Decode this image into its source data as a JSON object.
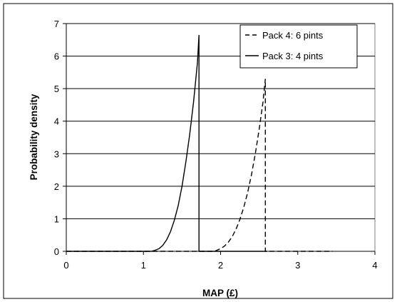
{
  "chart_data": {
    "type": "line",
    "title": "",
    "xlabel": "MAP (£)",
    "ylabel": "Probability density",
    "xlim": [
      0,
      4
    ],
    "ylim": [
      0,
      7
    ],
    "x_ticks": [
      "0",
      "1",
      "2",
      "3",
      "4"
    ],
    "y_ticks": [
      "0",
      "1",
      "2",
      "3",
      "4",
      "5",
      "6",
      "7"
    ],
    "grid": {
      "horizontal": true,
      "vertical": false
    },
    "legend_position": "top-right",
    "series": [
      {
        "name": "Pack 4: 6 pints",
        "dash": "dashed",
        "color": "#000000",
        "points": [
          [
            0.0,
            0.0
          ],
          [
            1.92,
            0.0
          ],
          [
            1.95,
            0.03
          ],
          [
            2.0,
            0.08
          ],
          [
            2.05,
            0.16
          ],
          [
            2.1,
            0.28
          ],
          [
            2.15,
            0.45
          ],
          [
            2.2,
            0.68
          ],
          [
            2.25,
            0.98
          ],
          [
            2.3,
            1.35
          ],
          [
            2.35,
            1.8
          ],
          [
            2.4,
            2.35
          ],
          [
            2.45,
            3.0
          ],
          [
            2.5,
            3.75
          ],
          [
            2.55,
            4.6
          ],
          [
            2.58,
            5.3
          ],
          [
            2.58,
            0.0
          ],
          [
            3.45,
            0.0
          ]
        ]
      },
      {
        "name": "Pack 3: 4 pints",
        "dash": "solid",
        "color": "#000000",
        "points": [
          [
            0.0,
            0.0
          ],
          [
            1.1,
            0.0
          ],
          [
            1.15,
            0.03
          ],
          [
            1.2,
            0.08
          ],
          [
            1.25,
            0.18
          ],
          [
            1.3,
            0.35
          ],
          [
            1.35,
            0.6
          ],
          [
            1.4,
            0.95
          ],
          [
            1.45,
            1.4
          ],
          [
            1.5,
            2.0
          ],
          [
            1.55,
            2.75
          ],
          [
            1.6,
            3.6
          ],
          [
            1.65,
            4.6
          ],
          [
            1.7,
            5.8
          ],
          [
            1.72,
            6.65
          ],
          [
            1.72,
            0.0
          ],
          [
            2.6,
            0.0
          ]
        ]
      }
    ]
  }
}
